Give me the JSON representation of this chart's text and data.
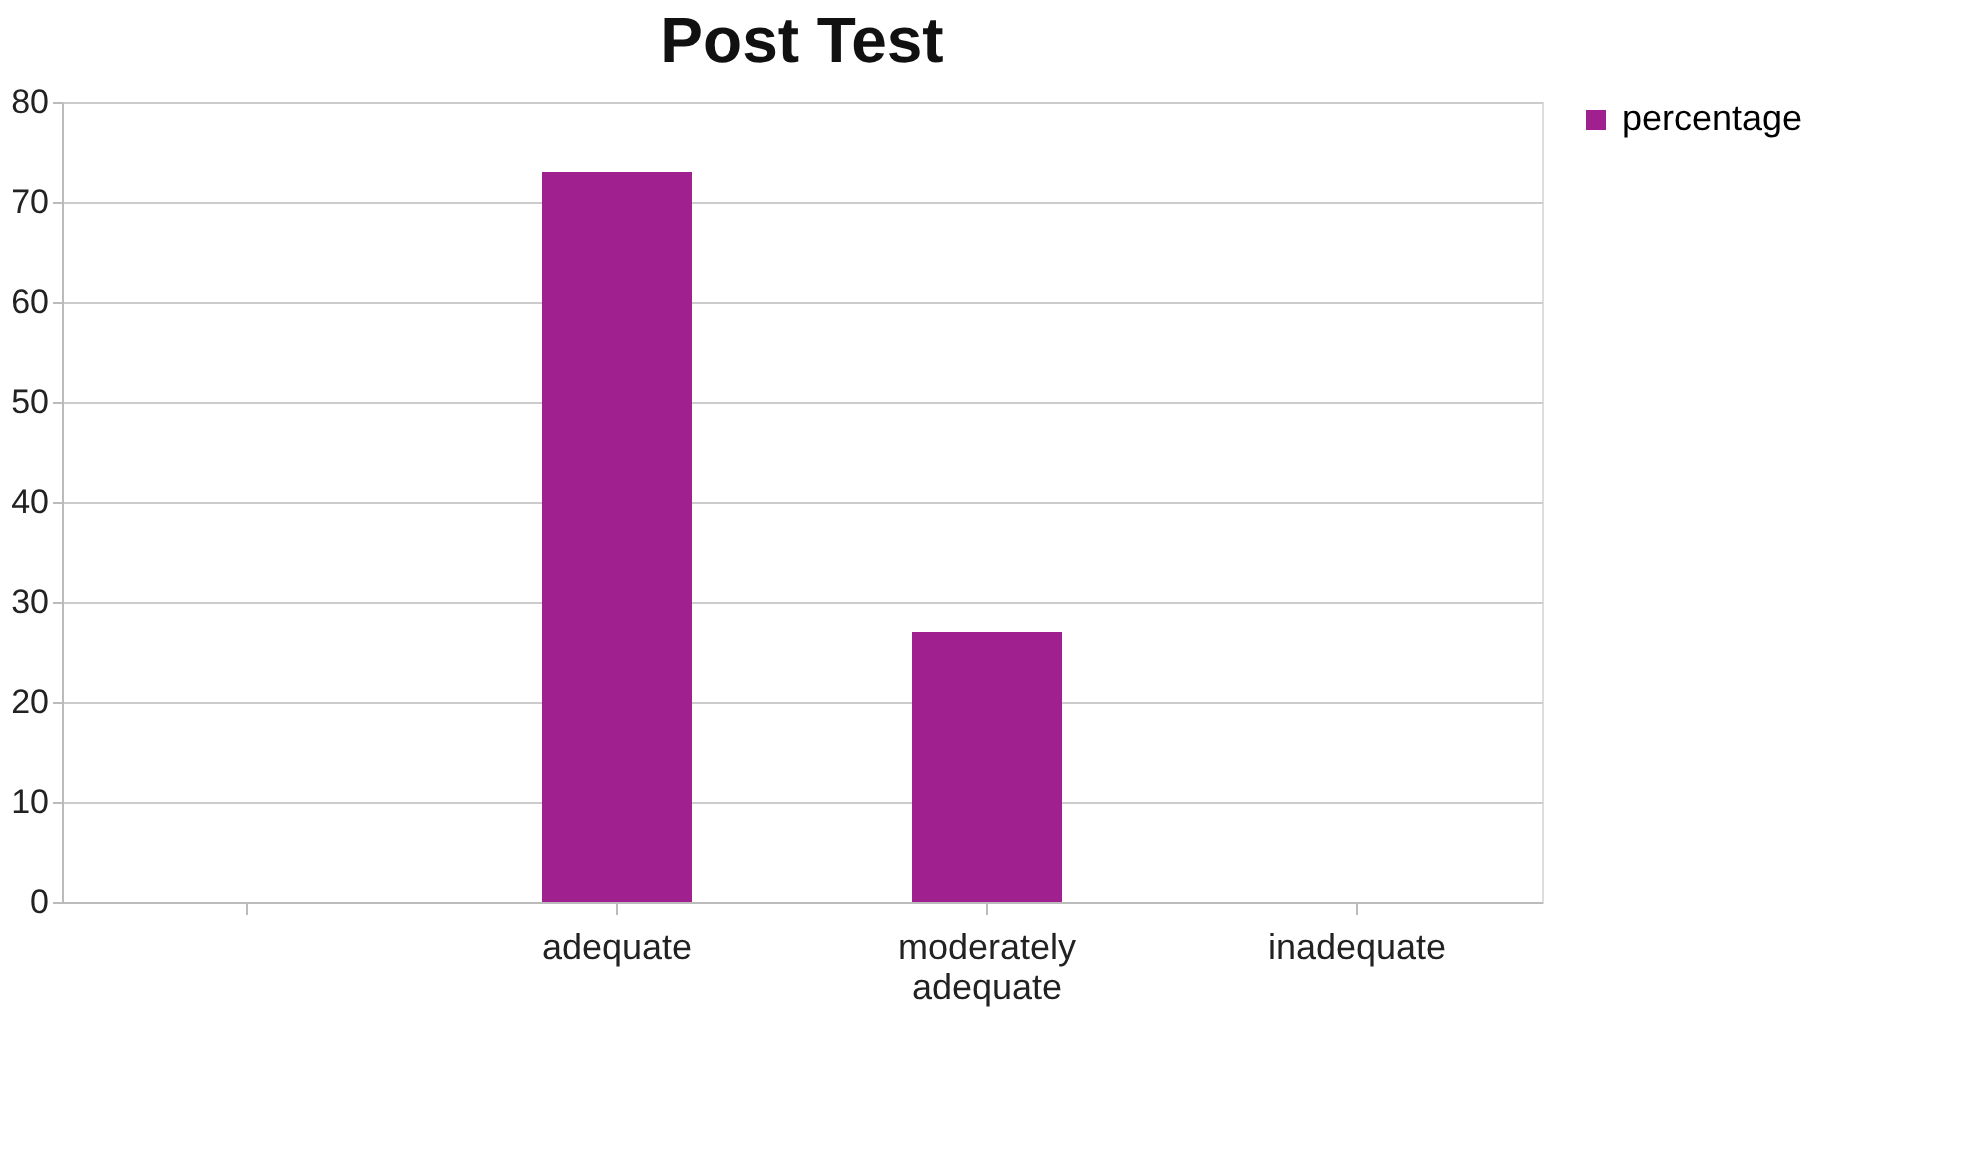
{
  "chart_data": {
    "type": "bar",
    "title": "Post Test",
    "categories": [
      null,
      "adequate",
      "moderately adequate",
      "inadequate"
    ],
    "series": [
      {
        "name": "percentage",
        "color": "#a0208f",
        "values": [
          null,
          73,
          27,
          0
        ]
      }
    ],
    "ylim": [
      0,
      80
    ],
    "yticks": [
      0,
      10,
      20,
      30,
      40,
      50,
      60,
      70,
      80
    ],
    "grid": "y",
    "legend": "right"
  }
}
